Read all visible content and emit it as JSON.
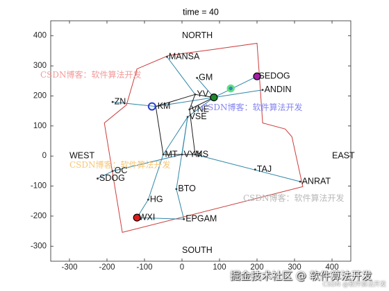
{
  "chart_data": {
    "type": "scatter",
    "title": "time = 40",
    "xlim": [
      -350,
      450
    ],
    "ylim": [
      -350,
      450
    ],
    "xticks": [
      -300,
      -200,
      -100,
      0,
      100,
      200,
      300,
      400
    ],
    "yticks": [
      -300,
      -200,
      -100,
      0,
      100,
      200,
      300,
      400
    ],
    "grid": false,
    "node_color": "#333333",
    "nodes": [
      {
        "name": "MANSA",
        "x": -40,
        "y": 330
      },
      {
        "name": "GM",
        "x": 40,
        "y": 260
      },
      {
        "name": "YV",
        "x": 35,
        "y": 205
      },
      {
        "name": "SEDOG",
        "x": 200,
        "y": 265
      },
      {
        "name": "ANDIN",
        "x": 215,
        "y": 220
      },
      {
        "name": "ZN",
        "x": -185,
        "y": 180
      },
      {
        "name": "KM",
        "x": -70,
        "y": 165
      },
      {
        "name": "VNE",
        "x": 20,
        "y": 155
      },
      {
        "name": "VSE",
        "x": 15,
        "y": 130
      },
      {
        "name": "MT",
        "x": -50,
        "y": 5
      },
      {
        "name": "VYM",
        "x": 0,
        "y": 5
      },
      {
        "name": "KS",
        "x": 35,
        "y": 5
      },
      {
        "name": "OC",
        "x": -185,
        "y": -50
      },
      {
        "name": "SDOG",
        "x": -225,
        "y": -75
      },
      {
        "name": "HG",
        "x": -90,
        "y": -145
      },
      {
        "name": "WXI",
        "x": -120,
        "y": -205
      },
      {
        "name": "BTO",
        "x": -15,
        "y": -110
      },
      {
        "name": "EPGAM",
        "x": 5,
        "y": -210
      },
      {
        "name": "TAJ",
        "x": 195,
        "y": -45
      },
      {
        "name": "ANRAT",
        "x": 315,
        "y": -85
      }
    ],
    "annotations": [
      {
        "text": "NORTH",
        "x": 0,
        "y": 400
      },
      {
        "text": "SOUTH",
        "x": 0,
        "y": -315
      },
      {
        "text": "WEST",
        "x": -300,
        "y": 0
      },
      {
        "text": "EAST",
        "x": 400,
        "y": 0
      }
    ],
    "boundary": {
      "color": "#cc3b3b",
      "points": [
        [
          -120,
          290
        ],
        [
          -35,
          335
        ],
        [
          80,
          354
        ],
        [
          200,
          375
        ],
        [
          205,
          290
        ],
        [
          215,
          110
        ],
        [
          275,
          90
        ],
        [
          293,
          64
        ],
        [
          322,
          -102
        ],
        [
          -159,
          -254
        ],
        [
          -207,
          110
        ],
        [
          -148,
          170
        ]
      ]
    },
    "edges": [
      {
        "color": "#2e86a8",
        "from": [
          -40,
          330
        ],
        "to": [
          35,
          205
        ]
      },
      {
        "color": "#2e86a8",
        "from": [
          40,
          260
        ],
        "to": [
          85,
          195
        ]
      },
      {
        "color": "#2e86a8",
        "from": [
          85,
          195
        ],
        "to": [
          200,
          265
        ]
      },
      {
        "color": "#2e86a8",
        "from": [
          85,
          195
        ],
        "to": [
          215,
          220
        ]
      },
      {
        "color": "#2e86a8",
        "from": [
          -70,
          165
        ],
        "to": [
          85,
          195
        ]
      },
      {
        "color": "#2e86a8",
        "from": [
          85,
          195
        ],
        "to": [
          15,
          130
        ]
      },
      {
        "color": "#2e86a8",
        "from": [
          15,
          130
        ],
        "to": [
          -50,
          5
        ]
      },
      {
        "color": "#2e86a8",
        "from": [
          15,
          130
        ],
        "to": [
          0,
          5
        ]
      },
      {
        "color": "#2e86a8",
        "from": [
          15,
          130
        ],
        "to": [
          -15,
          -110
        ]
      },
      {
        "color": "#2e86a8",
        "from": [
          -50,
          5
        ],
        "to": [
          -90,
          -145
        ]
      },
      {
        "color": "#2e86a8",
        "from": [
          -90,
          -145
        ],
        "to": [
          -120,
          -205
        ]
      },
      {
        "color": "#2e86a8",
        "from": [
          -15,
          -110
        ],
        "to": [
          5,
          -210
        ]
      },
      {
        "color": "#2e86a8",
        "from": [
          -120,
          -205
        ],
        "to": [
          5,
          -210
        ]
      },
      {
        "color": "#2e86a8",
        "from": [
          0,
          5
        ],
        "to": [
          -185,
          -50
        ]
      },
      {
        "color": "#2e86a8",
        "from": [
          -185,
          -50
        ],
        "to": [
          -225,
          -75
        ]
      },
      {
        "color": "#2e86a8",
        "from": [
          35,
          5
        ],
        "to": [
          315,
          -85
        ]
      },
      {
        "color": "#2e86a8",
        "from": [
          -185,
          180
        ],
        "to": [
          -70,
          165
        ]
      },
      {
        "color": "#1a1a1a",
        "from": [
          -70,
          165
        ],
        "to": [
          35,
          205
        ]
      },
      {
        "color": "#1a1a1a",
        "from": [
          35,
          205
        ],
        "to": [
          85,
          195
        ]
      },
      {
        "color": "#1a1a1a",
        "from": [
          35,
          205
        ],
        "to": [
          20,
          155
        ]
      },
      {
        "color": "#1a1a1a",
        "from": [
          20,
          155
        ],
        "to": [
          85,
          195
        ]
      },
      {
        "color": "#1a1a1a",
        "from": [
          -70,
          165
        ],
        "to": [
          -50,
          5
        ]
      },
      {
        "color": "#1a1a1a",
        "from": [
          -50,
          5
        ],
        "to": [
          35,
          5
        ]
      },
      {
        "color": "#1a1a1a",
        "from": [
          20,
          155
        ],
        "to": [
          35,
          5
        ]
      }
    ],
    "markers": [
      {
        "x": -80,
        "y": 165,
        "fill": null,
        "edge": "#2a3fd1"
      },
      {
        "x": 85,
        "y": 195,
        "fill": "#1f8a2a",
        "edge": "#000000"
      },
      {
        "x": 130,
        "y": 225,
        "fill": "#3a7fc4",
        "edge": "#5fe37f"
      },
      {
        "x": 200,
        "y": 265,
        "fill": "#a21fa6",
        "edge": "#000000"
      },
      {
        "x": -120,
        "y": -205,
        "fill": "#e01b1b",
        "edge": "#000000"
      }
    ]
  },
  "watermarks": [
    {
      "text": "CSDN博客：软件算法开发",
      "color": "#f39a9a"
    },
    {
      "text": "CSDN博客：软件算法开发",
      "color": "#8585f2"
    },
    {
      "text": "CSDN博客：软件算法开发",
      "color": "#f6c777"
    },
    {
      "text": "CSDN博客：软件算法开发",
      "color": "#b8b8b8"
    }
  ],
  "footer_watermark": {
    "main": "掘金技术社区 @ 软件算法开发",
    "sub": "CSDN @软件算法开发"
  }
}
